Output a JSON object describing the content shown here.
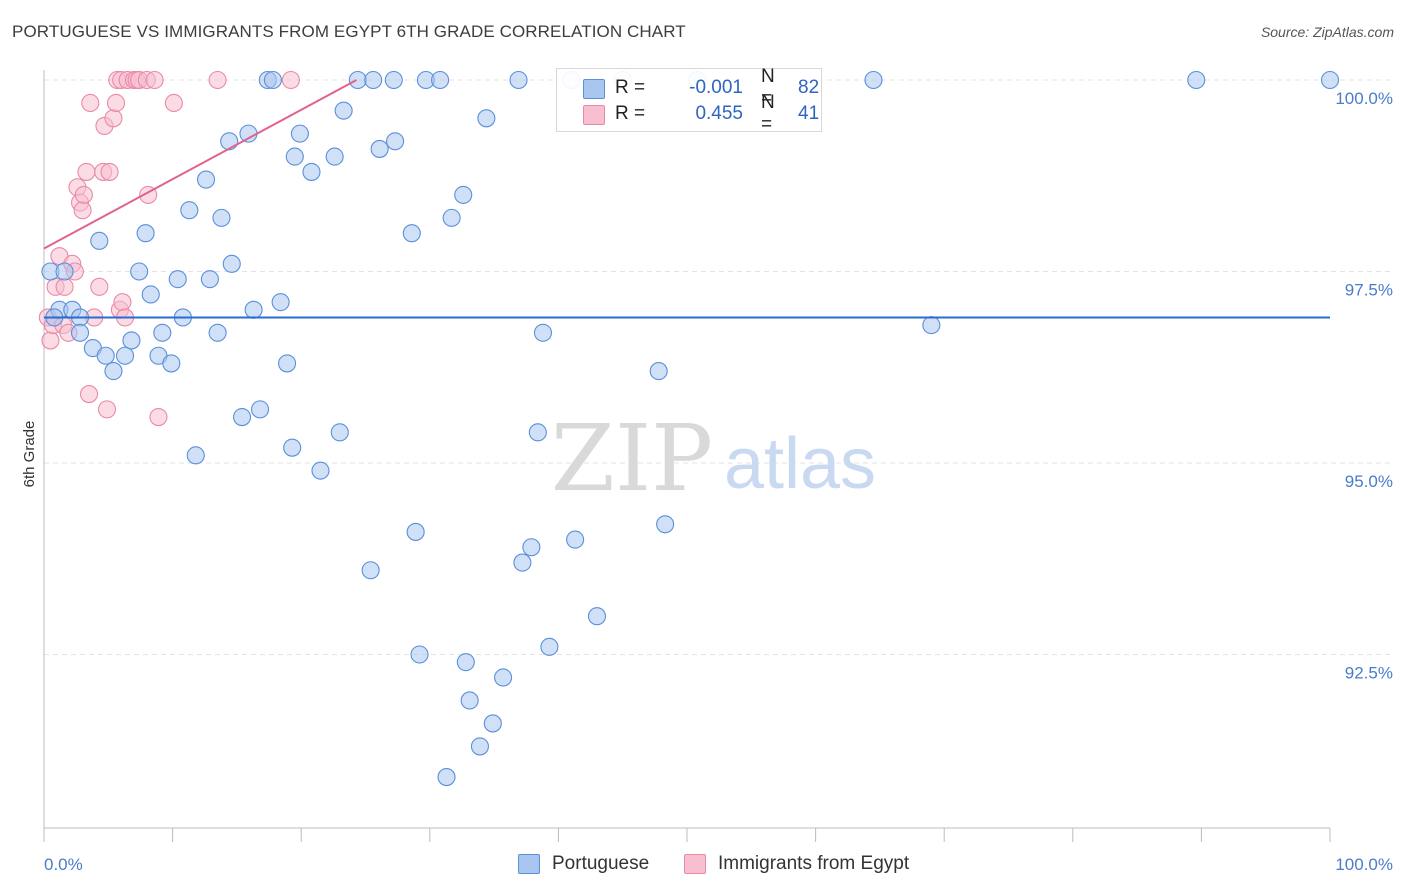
{
  "title": "PORTUGUESE VS IMMIGRANTS FROM EGYPT 6TH GRADE CORRELATION CHART",
  "source": "Source: ZipAtlas.com",
  "watermark": {
    "zip": "ZIP",
    "atlas": "atlas"
  },
  "legend": {
    "rows": [
      {
        "r_label": "R =",
        "r_value": "-0.001",
        "n_label": "N =",
        "n_value": "82"
      },
      {
        "r_label": "R =",
        "r_value": "0.455",
        "n_label": "N =",
        "n_value": "41"
      }
    ]
  },
  "bottom_legend": {
    "portuguese": "Portuguese",
    "egypt": "Immigrants from Egypt"
  },
  "colors": {
    "blue_fill": "#a9c6ee",
    "blue_stroke": "#5b8fdb",
    "blue_line": "#2a6dcf",
    "pink_fill": "#f7bfd0",
    "pink_stroke": "#e98aa8",
    "pink_line": "#e0628d",
    "tick_text": "#4a7ccb",
    "grid": "#e3e3e3"
  },
  "chart_data": {
    "type": "scatter",
    "title": "PORTUGUESE VS IMMIGRANTS FROM EGYPT 6TH GRADE CORRELATION CHART",
    "xlabel": "",
    "ylabel": "6th Grade",
    "xlim": [
      0,
      100
    ],
    "ylim": [
      90.25,
      100.25
    ],
    "x_tick_labels": [
      "0.0%",
      "100.0%"
    ],
    "y_ticks": [
      {
        "value": 100.0,
        "label": "100.0%"
      },
      {
        "value": 97.5,
        "label": "97.5%"
      },
      {
        "value": 95.0,
        "label": "95.0%"
      },
      {
        "value": 92.5,
        "label": "92.5%"
      }
    ],
    "series": [
      {
        "name": "Portuguese",
        "color": "blue",
        "trend": {
          "x0": 0,
          "y0": 96.9,
          "x1": 100,
          "y1": 96.9
        },
        "points": [
          [
            0.5,
            97.5
          ],
          [
            1.2,
            97.0
          ],
          [
            0.8,
            96.9
          ],
          [
            1.6,
            97.5
          ],
          [
            2.2,
            97.0
          ],
          [
            2.8,
            96.9
          ],
          [
            2.8,
            96.7
          ],
          [
            3.8,
            96.5
          ],
          [
            4.3,
            97.9
          ],
          [
            4.8,
            96.4
          ],
          [
            5.4,
            96.2
          ],
          [
            6.3,
            96.4
          ],
          [
            6.8,
            96.6
          ],
          [
            7.4,
            97.5
          ],
          [
            7.9,
            98.0
          ],
          [
            8.3,
            97.2
          ],
          [
            8.9,
            96.4
          ],
          [
            9.2,
            96.7
          ],
          [
            9.9,
            96.3
          ],
          [
            10.4,
            97.4
          ],
          [
            10.8,
            96.9
          ],
          [
            11.3,
            98.3
          ],
          [
            11.8,
            95.1
          ],
          [
            12.6,
            98.7
          ],
          [
            12.9,
            97.4
          ],
          [
            13.5,
            96.7
          ],
          [
            13.8,
            98.2
          ],
          [
            14.4,
            99.2
          ],
          [
            14.6,
            97.6
          ],
          [
            15.4,
            95.6
          ],
          [
            15.9,
            99.3
          ],
          [
            16.3,
            97.0
          ],
          [
            16.8,
            95.7
          ],
          [
            17.4,
            100.0
          ],
          [
            17.8,
            100.0
          ],
          [
            18.4,
            97.1
          ],
          [
            18.9,
            96.3
          ],
          [
            19.3,
            95.2
          ],
          [
            19.5,
            99.0
          ],
          [
            19.9,
            99.3
          ],
          [
            20.8,
            98.8
          ],
          [
            21.5,
            94.9
          ],
          [
            22.6,
            99.0
          ],
          [
            23.0,
            95.4
          ],
          [
            23.3,
            99.6
          ],
          [
            24.4,
            100.0
          ],
          [
            25.6,
            100.0
          ],
          [
            25.4,
            93.6
          ],
          [
            26.1,
            99.1
          ],
          [
            27.2,
            100.0
          ],
          [
            27.3,
            99.2
          ],
          [
            28.6,
            98.0
          ],
          [
            28.9,
            94.1
          ],
          [
            29.2,
            92.5
          ],
          [
            29.7,
            100.0
          ],
          [
            30.8,
            100.0
          ],
          [
            31.7,
            98.2
          ],
          [
            31.3,
            90.9
          ],
          [
            32.6,
            98.5
          ],
          [
            32.8,
            92.4
          ],
          [
            33.1,
            91.9
          ],
          [
            33.9,
            91.3
          ],
          [
            34.4,
            99.5
          ],
          [
            34.9,
            91.6
          ],
          [
            35.7,
            92.2
          ],
          [
            36.9,
            100.0
          ],
          [
            37.2,
            93.7
          ],
          [
            37.9,
            93.9
          ],
          [
            38.4,
            95.4
          ],
          [
            38.8,
            96.7
          ],
          [
            39.3,
            92.6
          ],
          [
            41.0,
            100.0
          ],
          [
            41.3,
            94.0
          ],
          [
            43.0,
            93.0
          ],
          [
            45.0,
            100.0
          ],
          [
            47.8,
            96.2
          ],
          [
            48.3,
            94.2
          ],
          [
            50.8,
            100.0
          ],
          [
            64.5,
            100.0
          ],
          [
            69.0,
            96.8
          ],
          [
            89.6,
            100.0
          ],
          [
            100.0,
            100.0
          ]
        ]
      },
      {
        "name": "Immigrants from Egypt",
        "color": "pink",
        "trend": {
          "x0": 0,
          "y0": 97.8,
          "x1": 24.3,
          "y1": 100.0
        },
        "points": [
          [
            0.3,
            96.9
          ],
          [
            0.5,
            96.6
          ],
          [
            0.7,
            96.8
          ],
          [
            0.9,
            97.3
          ],
          [
            1.2,
            97.7
          ],
          [
            1.5,
            96.8
          ],
          [
            1.6,
            97.3
          ],
          [
            1.9,
            96.7
          ],
          [
            2.2,
            97.6
          ],
          [
            2.4,
            97.5
          ],
          [
            2.6,
            98.6
          ],
          [
            2.8,
            98.4
          ],
          [
            3.0,
            98.3
          ],
          [
            3.1,
            98.5
          ],
          [
            3.3,
            98.8
          ],
          [
            3.5,
            95.9
          ],
          [
            3.6,
            99.7
          ],
          [
            3.9,
            96.9
          ],
          [
            4.3,
            97.3
          ],
          [
            4.6,
            98.8
          ],
          [
            4.7,
            99.4
          ],
          [
            4.9,
            95.7
          ],
          [
            5.1,
            98.8
          ],
          [
            5.4,
            99.5
          ],
          [
            5.6,
            99.7
          ],
          [
            5.7,
            100.0
          ],
          [
            5.9,
            97.0
          ],
          [
            6.0,
            100.0
          ],
          [
            6.1,
            97.1
          ],
          [
            6.3,
            96.9
          ],
          [
            6.5,
            100.0
          ],
          [
            7.0,
            100.0
          ],
          [
            7.2,
            100.0
          ],
          [
            7.4,
            100.0
          ],
          [
            8.0,
            100.0
          ],
          [
            8.1,
            98.5
          ],
          [
            8.6,
            100.0
          ],
          [
            8.9,
            95.6
          ],
          [
            10.1,
            99.7
          ],
          [
            13.5,
            100.0
          ],
          [
            19.2,
            100.0
          ]
        ]
      }
    ]
  }
}
